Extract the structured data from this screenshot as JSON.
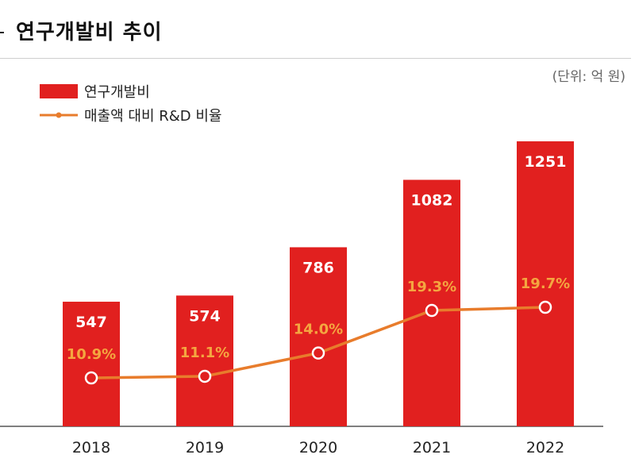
{
  "header": {
    "title": "연구개발비 추이",
    "unit": "(단위: 억 원)"
  },
  "legend": {
    "bar_label": "연구개발비",
    "line_label": "매출액 대비 R&D 비율"
  },
  "colors": {
    "bar": "#e1201f",
    "line": "#e87c2c",
    "bar_label": "#ffffff",
    "line_label": "#f4a640"
  },
  "chart_data": {
    "type": "bar",
    "categories": [
      "2018",
      "2019",
      "2020",
      "2021",
      "2022"
    ],
    "series": [
      {
        "name": "연구개발비",
        "type": "bar",
        "values": [
          547,
          574,
          786,
          1082,
          1251
        ]
      },
      {
        "name": "매출액 대비 R&D 비율",
        "type": "line",
        "values": [
          10.9,
          11.1,
          14.0,
          19.3,
          19.7
        ],
        "labels": [
          "10.9%",
          "11.1%",
          "14.0%",
          "19.3%",
          "19.7%"
        ]
      }
    ],
    "value_labels": [
      "547",
      "574",
      "786",
      "1082",
      "1251"
    ],
    "grid": false,
    "legend_position": "top-left"
  }
}
